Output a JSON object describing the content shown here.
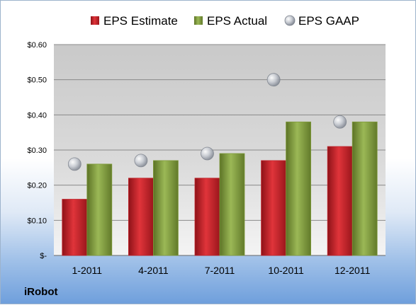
{
  "company": "iRobot",
  "colors": {
    "estimate": "#c0242b",
    "actual": "#7f9a3a",
    "gaap": "#b8bcc4"
  },
  "chart_data": {
    "type": "bar",
    "categories": [
      "1-2011",
      "4-2011",
      "7-2011",
      "10-2011",
      "12-2011"
    ],
    "series": [
      {
        "name": "EPS Estimate",
        "kind": "bar",
        "values": [
          0.16,
          0.22,
          0.22,
          0.27,
          0.31
        ]
      },
      {
        "name": "EPS Actual",
        "kind": "bar",
        "values": [
          0.26,
          0.27,
          0.29,
          0.38,
          0.38
        ]
      },
      {
        "name": "EPS GAAP",
        "kind": "marker",
        "values": [
          0.26,
          0.27,
          0.29,
          0.5,
          0.38
        ]
      }
    ],
    "ylim": [
      0,
      0.6
    ],
    "yticks": [
      0,
      0.1,
      0.2,
      0.3,
      0.4,
      0.5,
      0.6
    ],
    "ytick_labels": [
      "$-",
      "$0.10",
      "$0.20",
      "$0.30",
      "$0.40",
      "$0.50",
      "$0.60"
    ],
    "grid": true,
    "legend_position": "top"
  }
}
